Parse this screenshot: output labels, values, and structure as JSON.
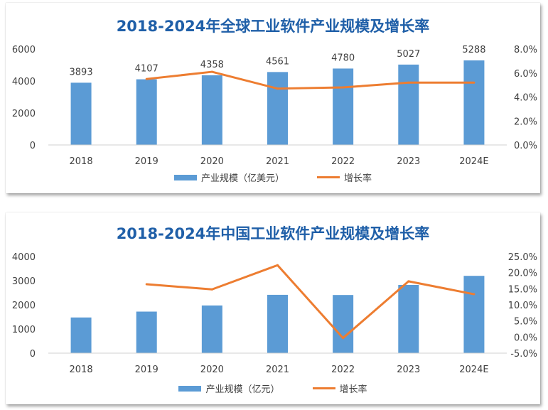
{
  "colors": {
    "bar": "#5b9bd5",
    "line": "#ed7d31",
    "title": "#1f5fa8"
  },
  "chart_data": [
    {
      "type": "bar",
      "title": "2018-2024年全球工业软件产业规模及增长率",
      "categories": [
        "2018",
        "2019",
        "2020",
        "2021",
        "2022",
        "2023",
        "2024E"
      ],
      "y_ticks": [
        "0",
        "2000",
        "4000",
        "6000"
      ],
      "y2_ticks": [
        "0.0%",
        "2.0%",
        "4.0%",
        "6.0%",
        "8.0%"
      ],
      "ylim": [
        0,
        6000
      ],
      "y2lim": [
        0,
        8
      ],
      "grid": false,
      "legend_position": "bottom",
      "series": [
        {
          "name": "产业规模（亿美元）",
          "type": "bar",
          "axis": "left",
          "values": [
            3893,
            4107,
            4358,
            4561,
            4780,
            5027,
            5288
          ],
          "labels": [
            "3893",
            "4107",
            "4358",
            "4561",
            "4780",
            "5027",
            "5288"
          ]
        },
        {
          "name": "增长率",
          "type": "line",
          "axis": "right",
          "values": [
            null,
            5.5,
            6.1,
            4.7,
            4.8,
            5.2,
            5.2
          ]
        }
      ]
    },
    {
      "type": "bar",
      "title": "2018-2024年中国工业软件产业规模及增长率",
      "categories": [
        "2018",
        "2019",
        "2020",
        "2021",
        "2022",
        "2023",
        "2024E"
      ],
      "y_ticks": [
        "0",
        "1000",
        "2000",
        "3000",
        "4000"
      ],
      "y2_ticks": [
        "-5.0%",
        "0.0%",
        "5.0%",
        "10.0%",
        "15.0%",
        "20.0%",
        "25.0%"
      ],
      "ylim": [
        0,
        4000
      ],
      "y2lim": [
        -5,
        25
      ],
      "grid": false,
      "legend_position": "bottom",
      "series": [
        {
          "name": "产业规模（亿元）",
          "type": "bar",
          "axis": "left",
          "values": [
            1477,
            1720,
            1974,
            2414,
            2407,
            2824,
            3200
          ]
        },
        {
          "name": "增长率",
          "type": "line",
          "axis": "right",
          "values": [
            null,
            16.4,
            14.8,
            22.3,
            -0.3,
            17.3,
            13.3
          ]
        }
      ]
    }
  ]
}
